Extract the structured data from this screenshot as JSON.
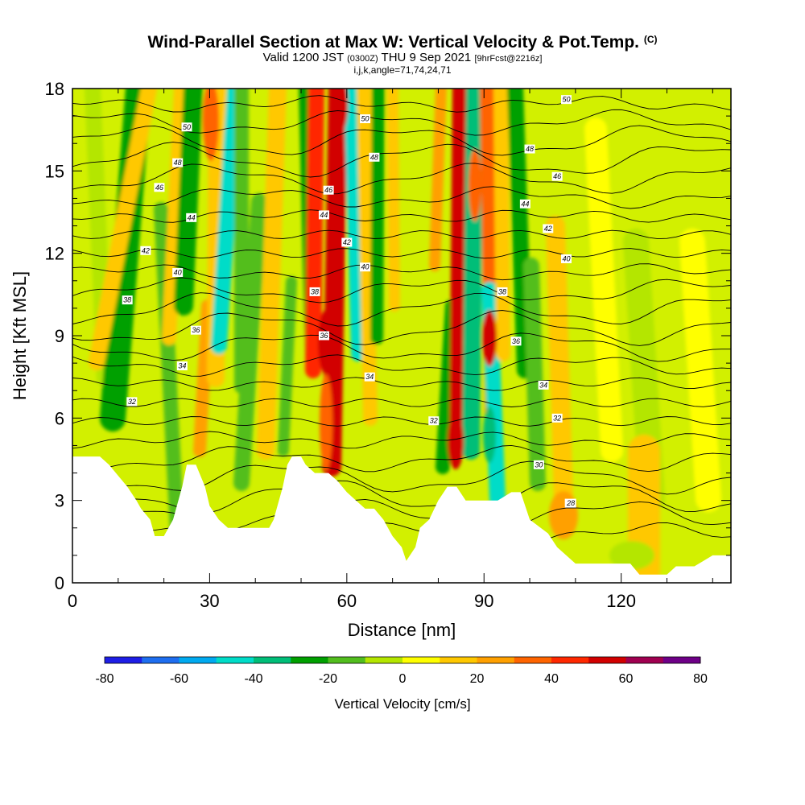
{
  "title": {
    "main": "Wind-Parallel Section at Max W: Vertical Velocity & Pot.Temp.",
    "main_unit": "(C)",
    "valid_prefix": "Valid 1200 JST",
    "valid_utc": "(0300Z)",
    "valid_date": "THU 9 Sep 2021",
    "forecast": "[9hrFcst@2216z]",
    "indices": "i,j,k,angle=71,74,24,71"
  },
  "chart_data": {
    "type": "heatmap",
    "xlabel": "Distance [nm]",
    "ylabel": "Height [Kft MSL]",
    "xlim": [
      0,
      144
    ],
    "ylim": [
      0,
      18
    ],
    "x_ticks": [
      0,
      30,
      60,
      90,
      120
    ],
    "y_ticks": [
      0,
      3,
      6,
      9,
      12,
      15,
      18
    ],
    "colorbar": {
      "label": "Vertical Velocity [cm/s]",
      "range": [
        -80,
        80
      ],
      "tick_values": [
        -80,
        -60,
        -40,
        -20,
        0,
        20,
        40,
        60,
        80
      ],
      "tick_labels": [
        "-80",
        "-60",
        "-40",
        "-20",
        "0",
        "20",
        "40",
        "60",
        "80"
      ],
      "colors": [
        "#1e1ee6",
        "#1e6ef0",
        "#00aaf0",
        "#00dcc8",
        "#00be78",
        "#00a000",
        "#52be1e",
        "#b4e600",
        "#ffff00",
        "#ffc800",
        "#ffa000",
        "#ff6400",
        "#ff2800",
        "#d20000",
        "#a00050",
        "#6e0087"
      ]
    },
    "theta_contour_labels": [
      {
        "x": 25,
        "y": 16.6,
        "label": "50"
      },
      {
        "x": 64,
        "y": 16.9,
        "label": "50"
      },
      {
        "x": 108,
        "y": 17.6,
        "label": "50"
      },
      {
        "x": 23,
        "y": 15.3,
        "label": "48"
      },
      {
        "x": 66,
        "y": 15.5,
        "label": "48"
      },
      {
        "x": 100,
        "y": 15.8,
        "label": "48"
      },
      {
        "x": 19,
        "y": 14.4,
        "label": "46"
      },
      {
        "x": 56,
        "y": 14.3,
        "label": "46"
      },
      {
        "x": 106,
        "y": 14.8,
        "label": "46"
      },
      {
        "x": 26,
        "y": 13.3,
        "label": "44"
      },
      {
        "x": 55,
        "y": 13.4,
        "label": "44"
      },
      {
        "x": 99,
        "y": 13.8,
        "label": "44"
      },
      {
        "x": 16,
        "y": 12.1,
        "label": "42"
      },
      {
        "x": 60,
        "y": 12.4,
        "label": "42"
      },
      {
        "x": 104,
        "y": 12.9,
        "label": "42"
      },
      {
        "x": 23,
        "y": 11.3,
        "label": "40"
      },
      {
        "x": 64,
        "y": 11.5,
        "label": "40"
      },
      {
        "x": 108,
        "y": 11.8,
        "label": "40"
      },
      {
        "x": 12,
        "y": 10.3,
        "label": "38"
      },
      {
        "x": 53,
        "y": 10.6,
        "label": "38"
      },
      {
        "x": 94,
        "y": 10.6,
        "label": "38"
      },
      {
        "x": 27,
        "y": 9.2,
        "label": "36"
      },
      {
        "x": 55,
        "y": 9.0,
        "label": "36"
      },
      {
        "x": 97,
        "y": 8.8,
        "label": "36"
      },
      {
        "x": 24,
        "y": 7.9,
        "label": "34"
      },
      {
        "x": 65,
        "y": 7.5,
        "label": "34"
      },
      {
        "x": 103,
        "y": 7.2,
        "label": "34"
      },
      {
        "x": 13,
        "y": 6.6,
        "label": "32"
      },
      {
        "x": 79,
        "y": 5.9,
        "label": "32"
      },
      {
        "x": 106,
        "y": 6.0,
        "label": "32"
      },
      {
        "x": 102,
        "y": 4.3,
        "label": "30"
      },
      {
        "x": 109,
        "y": 2.9,
        "label": "28"
      }
    ]
  }
}
